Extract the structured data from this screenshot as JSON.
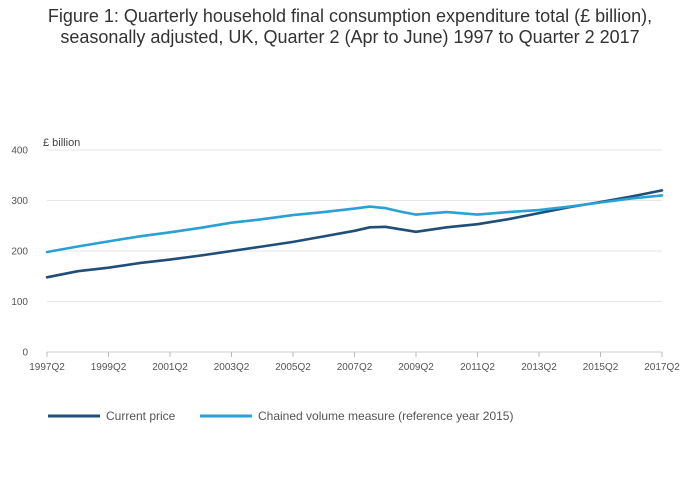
{
  "chart_data": {
    "type": "line",
    "title": "Figure 1: Quarterly household final consumption expenditure total (£ billion), seasonally adjusted, UK, Quarter 2 (Apr to June) 1997 to Quarter 2 2017",
    "ylabel": "£ billion",
    "xlabel": "",
    "ylim": [
      0,
      400
    ],
    "yticks": [
      0,
      100,
      200,
      300,
      400
    ],
    "xticks": [
      "1997Q2",
      "1999Q2",
      "2001Q2",
      "2003Q2",
      "2005Q2",
      "2007Q2",
      "2009Q2",
      "2011Q2",
      "2013Q2",
      "2015Q2",
      "2017Q2"
    ],
    "grid": "horizontal",
    "legend_position": "bottom-left",
    "x": [
      "1997Q2",
      "1998Q2",
      "1999Q2",
      "2000Q2",
      "2001Q2",
      "2002Q2",
      "2003Q2",
      "2004Q2",
      "2005Q2",
      "2006Q2",
      "2007Q2",
      "2007Q4",
      "2008Q2",
      "2008Q4",
      "2009Q2",
      "2010Q2",
      "2011Q2",
      "2012Q2",
      "2013Q2",
      "2014Q2",
      "2015Q2",
      "2016Q2",
      "2017Q2"
    ],
    "series": [
      {
        "name": "Current price",
        "color": "#1f4e79",
        "values": [
          148,
          160,
          167,
          176,
          183,
          191,
          200,
          209,
          218,
          229,
          240,
          247,
          248,
          243,
          238,
          247,
          253,
          263,
          275,
          287,
          297,
          308,
          320
        ]
      },
      {
        "name": "Chained volume measure (reference year 2015)",
        "color": "#2aa0d4",
        "values": [
          198,
          209,
          219,
          229,
          237,
          246,
          256,
          263,
          271,
          277,
          284,
          288,
          285,
          278,
          272,
          277,
          272,
          277,
          281,
          288,
          296,
          304,
          310
        ]
      }
    ]
  }
}
